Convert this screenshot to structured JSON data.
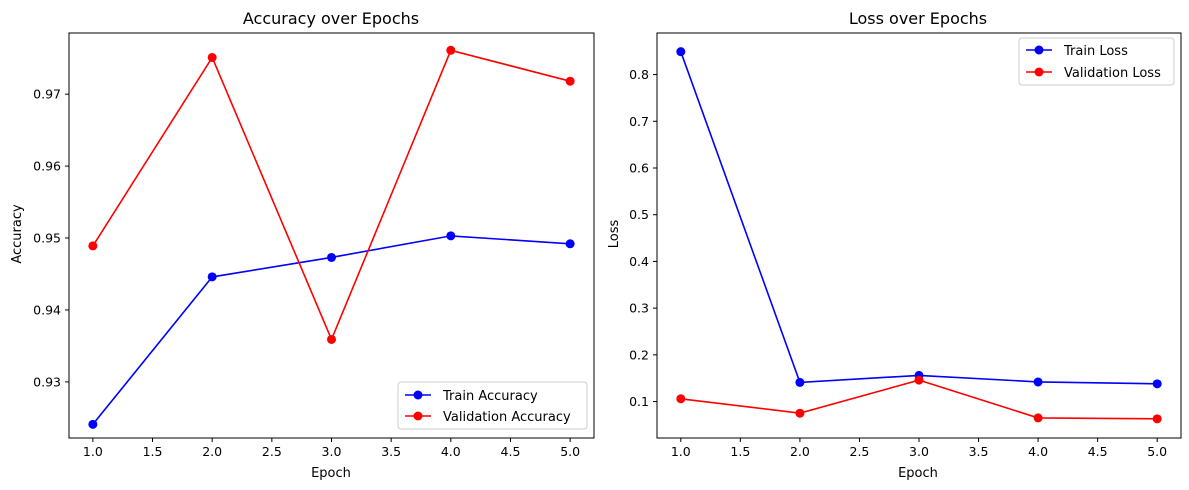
{
  "chart_data": [
    {
      "type": "line",
      "title": "Accuracy over Epochs",
      "xlabel": "Epoch",
      "ylabel": "Accuracy",
      "x": [
        1.0,
        2.0,
        3.0,
        4.0,
        5.0
      ],
      "xlim": [
        0.8,
        5.2
      ],
      "ylim": [
        0.9222,
        0.9785
      ],
      "x_ticks": [
        "1.0",
        "1.5",
        "2.0",
        "2.5",
        "3.0",
        "3.5",
        "4.0",
        "4.5",
        "5.0"
      ],
      "y_ticks": [
        "0.93",
        "0.94",
        "0.95",
        "0.96",
        "0.97"
      ],
      "legend_position": "lower-right",
      "grid": false,
      "series": [
        {
          "name": "Train Accuracy",
          "color": "#0000ff",
          "values": [
            0.9241,
            0.9446,
            0.9473,
            0.9503,
            0.9492
          ]
        },
        {
          "name": "Validation Accuracy",
          "color": "#ff0000",
          "values": [
            0.9489,
            0.9751,
            0.9359,
            0.9761,
            0.9718
          ]
        }
      ]
    },
    {
      "type": "line",
      "title": "Loss over Epochs",
      "xlabel": "Epoch",
      "ylabel": "Loss",
      "x": [
        1.0,
        2.0,
        3.0,
        4.0,
        5.0
      ],
      "xlim": [
        0.8,
        5.2
      ],
      "ylim": [
        0.022,
        0.889
      ],
      "x_ticks": [
        "1.0",
        "1.5",
        "2.0",
        "2.5",
        "3.0",
        "3.5",
        "4.0",
        "4.5",
        "5.0"
      ],
      "y_ticks": [
        "0.1",
        "0.2",
        "0.3",
        "0.4",
        "0.5",
        "0.6",
        "0.7",
        "0.8"
      ],
      "legend_position": "upper-right",
      "grid": false,
      "series": [
        {
          "name": "Train Loss",
          "color": "#0000ff",
          "values": [
            0.849,
            0.141,
            0.156,
            0.142,
            0.138
          ]
        },
        {
          "name": "Validation Loss",
          "color": "#ff0000",
          "values": [
            0.106,
            0.075,
            0.146,
            0.065,
            0.063
          ]
        }
      ]
    }
  ]
}
